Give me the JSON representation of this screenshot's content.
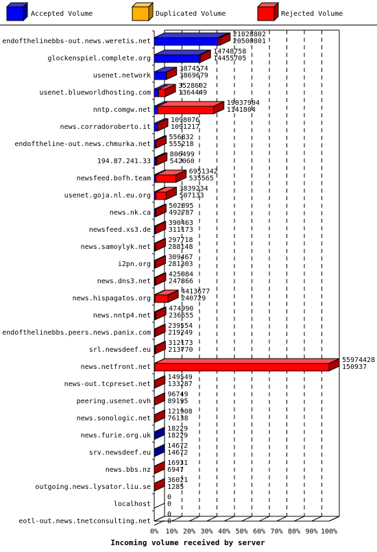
{
  "chart_data": {
    "type": "bar",
    "orientation": "horizontal",
    "stacked": true,
    "title": "Incoming volume received by server",
    "legend": {
      "placement": "top",
      "entries": [
        {
          "name": "Accepted Volume",
          "color": "#0000ff"
        },
        {
          "name": "Duplicated Volume",
          "color": "#ffb000"
        },
        {
          "name": "Rejected Volume",
          "color": "#ff0000"
        }
      ]
    },
    "x_axis": {
      "range": [
        0,
        100
      ],
      "unit": "%",
      "ticks": [
        "0%",
        "10%",
        "20%",
        "30%",
        "40%",
        "50%",
        "60%",
        "70%",
        "80%",
        "90%",
        "100%"
      ]
    },
    "max_total": 55974428,
    "categories": [
      "endofthelinebbs-out.news.weretis.net",
      "glockenspiel.complete.org",
      "usenet.network",
      "usenet.blueworldhosting.com",
      "nntp.comgw.net",
      "news.corradoroberto.it",
      "endoftheline-out.news.chmurka.net",
      "194.87.241.33",
      "newsfeed.bofh.team",
      "usenet.goja.nl.eu.org",
      "news.nk.ca",
      "newsfeed.xs3.de",
      "news.samoylyk.net",
      "i2pn.org",
      "news.dns3.net",
      "news.hispagatos.org",
      "news.nntp4.net",
      "endofthelinebbs.peers.news.panix.com",
      "srl.newsdeef.eu",
      "news.netfront.net",
      "news-out.tcpreset.net",
      "peering.usenet.ovh",
      "news.sonologic.net",
      "news.furie.org.uk",
      "srv.newsdeef.eu",
      "news.bbs.nz",
      "outgoing.news.lysator.liu.se",
      "localhost",
      "eotl-out.news.tnetconsulting.net"
    ],
    "total": [
      21028802,
      14748758,
      3874574,
      3528602,
      19037904,
      1098076,
      556832,
      806499,
      6951342,
      3839234,
      502895,
      390463,
      297718,
      309467,
      425084,
      4413677,
      474990,
      239554,
      312173,
      55974428,
      149549,
      96749,
      121908,
      18229,
      14672,
      16931,
      36021,
      0,
      0
    ],
    "accepted": [
      20500801,
      14455705,
      3869679,
      1364449,
      1141804,
      1091217,
      555218,
      542060,
      535565,
      507133,
      492787,
      311173,
      288148,
      281303,
      247866,
      240729,
      236655,
      219249,
      213770,
      150937,
      133287,
      89195,
      76138,
      18229,
      14672,
      6947,
      1285,
      0,
      0
    ],
    "duplicated": [
      0,
      0,
      0,
      0,
      0,
      0,
      0,
      0,
      0,
      0,
      0,
      0,
      0,
      0,
      0,
      0,
      0,
      0,
      0,
      0,
      0,
      0,
      0,
      0,
      0,
      0,
      0,
      0,
      0
    ]
  }
}
